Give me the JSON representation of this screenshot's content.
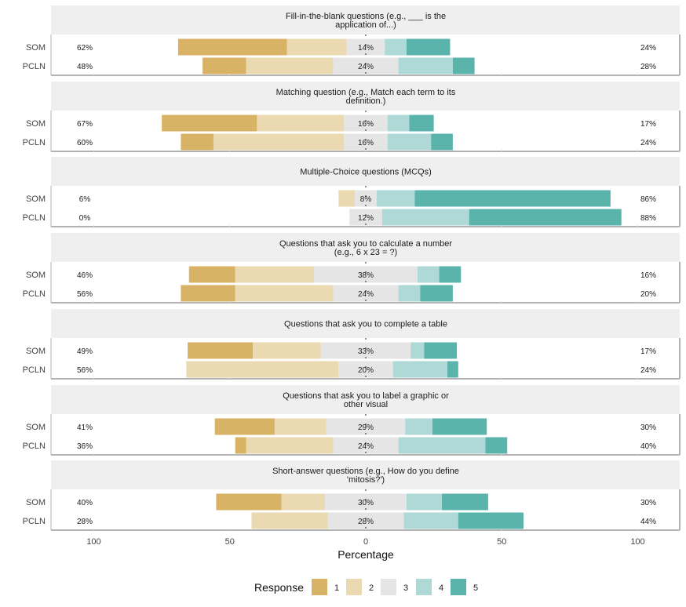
{
  "chart_data": {
    "type": "bar",
    "subtype": "diverging-stacked-likert",
    "title": "",
    "xlabel": "Percentage",
    "ylabel": "",
    "xlim": [
      -100,
      100
    ],
    "x_ticks": [
      {
        "value": -100,
        "label": "100"
      },
      {
        "value": -50,
        "label": "50"
      },
      {
        "value": 0,
        "label": "0"
      },
      {
        "value": 50,
        "label": "50"
      },
      {
        "value": 100,
        "label": "100"
      }
    ],
    "grid": false,
    "legend": {
      "title": "Response",
      "position": "bottom",
      "entries": [
        {
          "label": "1",
          "color": "#D8B365"
        },
        {
          "label": "2",
          "color": "#EBD9B2"
        },
        {
          "label": "3",
          "color": "#E5E5E5"
        },
        {
          "label": "4",
          "color": "#AED9D7"
        },
        {
          "label": "5",
          "color": "#5AB4AC"
        }
      ]
    },
    "groups": [
      "SOM",
      "PCLN"
    ],
    "panels": [
      {
        "title_lines": [
          "Fill-in-the-blank questions (e.g., ___ is the",
          "application of...)"
        ],
        "rows": [
          {
            "group": "SOM",
            "values": [
              40,
              22,
              14,
              8,
              16
            ],
            "low_label": "62%",
            "mid_label": "14%",
            "high_label": "24%"
          },
          {
            "group": "PCLN",
            "values": [
              16,
              32,
              24,
              20,
              8
            ],
            "low_label": "48%",
            "mid_label": "24%",
            "high_label": "28%"
          }
        ]
      },
      {
        "title_lines": [
          "Matching question (e.g., Match each term to its",
          "definition.)"
        ],
        "rows": [
          {
            "group": "SOM",
            "values": [
              35,
              32,
              16,
              8,
              9
            ],
            "low_label": "67%",
            "mid_label": "16%",
            "high_label": "17%"
          },
          {
            "group": "PCLN",
            "values": [
              12,
              48,
              16,
              16,
              8
            ],
            "low_label": "60%",
            "mid_label": "16%",
            "high_label": "24%"
          }
        ]
      },
      {
        "title_lines": [
          "Multiple-Choice questions (MCQs)"
        ],
        "rows": [
          {
            "group": "SOM",
            "values": [
              0,
              6,
              8,
              14,
              72
            ],
            "low_label": "6%",
            "mid_label": "8%",
            "high_label": "86%"
          },
          {
            "group": "PCLN",
            "values": [
              0,
              0,
              12,
              32,
              56
            ],
            "low_label": "0%",
            "mid_label": "12%",
            "high_label": "88%"
          }
        ]
      },
      {
        "title_lines": [
          "Questions that ask you to calculate a number",
          "(e.g., 6 x 23 = ?)"
        ],
        "rows": [
          {
            "group": "SOM",
            "values": [
              17,
              29,
              38,
              8,
              8
            ],
            "low_label": "46%",
            "mid_label": "38%",
            "high_label": "16%"
          },
          {
            "group": "PCLN",
            "values": [
              20,
              36,
              24,
              8,
              12
            ],
            "low_label": "56%",
            "mid_label": "24%",
            "high_label": "20%"
          }
        ]
      },
      {
        "title_lines": [
          "Questions that ask you to complete a table"
        ],
        "rows": [
          {
            "group": "SOM",
            "values": [
              24,
              25,
              33,
              5,
              12
            ],
            "low_label": "49%",
            "mid_label": "33%",
            "high_label": "17%"
          },
          {
            "group": "PCLN",
            "values": [
              0,
              56,
              20,
              20,
              4
            ],
            "low_label": "56%",
            "mid_label": "20%",
            "high_label": "24%"
          }
        ]
      },
      {
        "title_lines": [
          "Questions that ask you to label a graphic or",
          "other visual"
        ],
        "rows": [
          {
            "group": "SOM",
            "values": [
              22,
              19,
              29,
              10,
              20
            ],
            "low_label": "41%",
            "mid_label": "29%",
            "high_label": "30%"
          },
          {
            "group": "PCLN",
            "values": [
              4,
              32,
              24,
              32,
              8
            ],
            "low_label": "36%",
            "mid_label": "24%",
            "high_label": "40%"
          }
        ]
      },
      {
        "title_lines": [
          "Short-answer questions (e.g., How do you define",
          "'mitosis?')"
        ],
        "rows": [
          {
            "group": "SOM",
            "values": [
              24,
              16,
              30,
              13,
              17
            ],
            "low_label": "40%",
            "mid_label": "30%",
            "high_label": "30%"
          },
          {
            "group": "PCLN",
            "values": [
              0,
              28,
              28,
              20,
              24
            ],
            "low_label": "28%",
            "mid_label": "28%",
            "high_label": "44%"
          }
        ]
      }
    ]
  }
}
